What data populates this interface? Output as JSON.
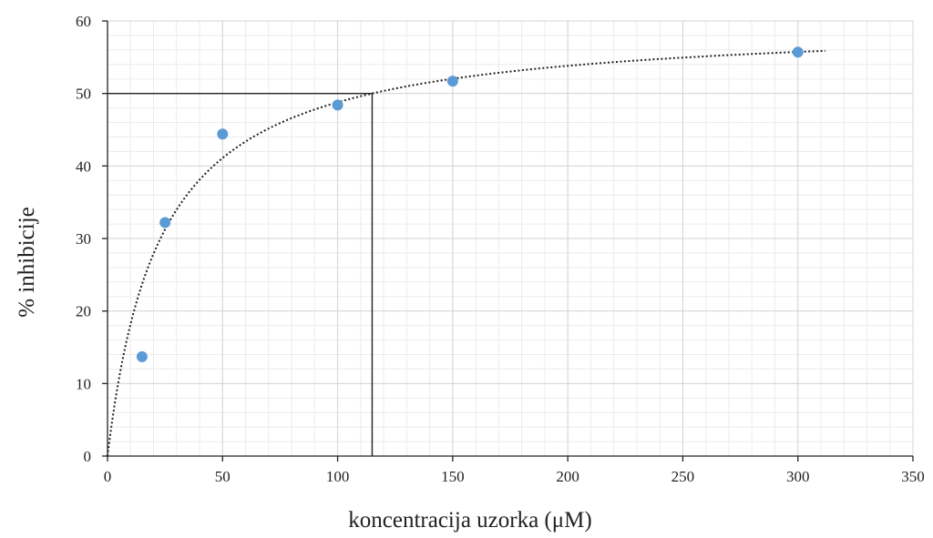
{
  "chart_data": {
    "type": "scatter",
    "title": "",
    "xlabel": "koncentracija uzorka (μM)",
    "ylabel": "% inhibicije",
    "xlim": [
      0,
      350
    ],
    "ylim": [
      0,
      60
    ],
    "xticks": [
      0,
      50,
      100,
      150,
      200,
      250,
      300,
      350
    ],
    "yticks": [
      0,
      10,
      20,
      30,
      40,
      50,
      60
    ],
    "x_tick_labels": [
      "0",
      "50",
      "100",
      "150",
      "200",
      "250",
      "300",
      "350"
    ],
    "y_tick_labels": [
      "0",
      "10",
      "20",
      "30",
      "40",
      "50",
      "60"
    ],
    "grid": true,
    "legend": "none",
    "series": [
      {
        "x": [
          15,
          25,
          50,
          100,
          150,
          300
        ],
        "y": [
          13.7,
          32.2,
          44.4,
          48.4,
          51.7,
          55.7
        ],
        "color": "#5b9bd5"
      }
    ],
    "trendline": {
      "style": "dotted",
      "color": "#222222",
      "form": "hyperbolic",
      "ymax": 60,
      "k": 23,
      "x_range": [
        0,
        312
      ]
    },
    "reference_lines": {
      "y": 50,
      "x": 115,
      "color": "#222222"
    }
  }
}
